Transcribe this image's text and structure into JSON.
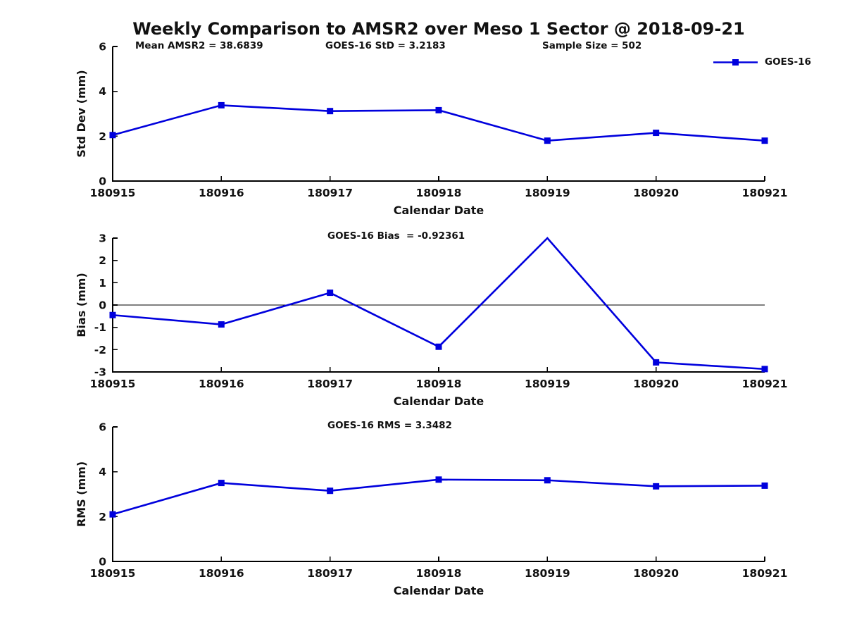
{
  "title": "Weekly Comparison to AMSR2 over Meso 1 Sector @ 2018-09-21",
  "legend": {
    "label": "GOES-16",
    "color": "#0000dd",
    "marker": "square"
  },
  "chart_data": [
    {
      "id": "std-dev",
      "type": "line",
      "series_name": "GOES-16",
      "categories": [
        "180915",
        "180916",
        "180917",
        "180918",
        "180919",
        "180920",
        "180921"
      ],
      "values": [
        2.05,
        3.38,
        3.12,
        3.16,
        1.8,
        2.15,
        1.8
      ],
      "xlabel": "Calendar Date",
      "ylabel": "Std Dev (mm)",
      "ylim": [
        0,
        6
      ],
      "yticks": [
        0,
        2,
        4,
        6
      ],
      "grid": false,
      "legend_position": "top-right",
      "line_color": "#0000dd",
      "annotations": [
        "Mean AMSR2 = 38.6839",
        "GOES-16 StD = 3.2183",
        "Sample Size = 502"
      ]
    },
    {
      "id": "bias",
      "type": "line",
      "series_name": "GOES-16",
      "subtitle": "GOES-16 Bias  = -0.92361",
      "categories": [
        "180915",
        "180916",
        "180917",
        "180918",
        "180919",
        "180920",
        "180921"
      ],
      "values": [
        -0.45,
        -0.87,
        0.55,
        -1.87,
        3.0,
        -2.57,
        -2.87
      ],
      "xlabel": "Calendar Date",
      "ylabel": "Bias (mm)",
      "ylim": [
        -3,
        3
      ],
      "yticks": [
        -3,
        -2,
        -1,
        0,
        1,
        2,
        3
      ],
      "zero_line": true,
      "grid": false,
      "line_color": "#0000dd"
    },
    {
      "id": "rms",
      "type": "line",
      "series_name": "GOES-16",
      "subtitle": "GOES-16 RMS = 3.3482",
      "categories": [
        "180915",
        "180916",
        "180917",
        "180918",
        "180919",
        "180920",
        "180921"
      ],
      "values": [
        2.1,
        3.5,
        3.15,
        3.65,
        3.62,
        3.35,
        3.38
      ],
      "xlabel": "Calendar Date",
      "ylabel": "RMS (mm)",
      "ylim": [
        0,
        6
      ],
      "yticks": [
        0,
        2,
        4,
        6
      ],
      "grid": false,
      "line_color": "#0000dd"
    }
  ]
}
